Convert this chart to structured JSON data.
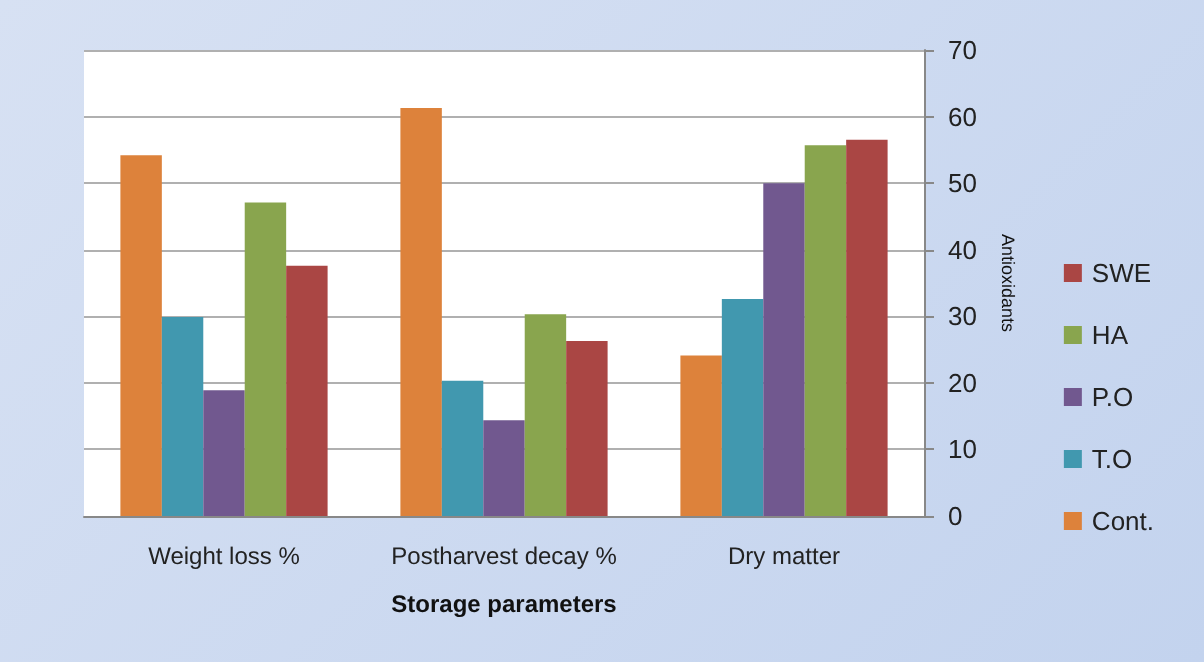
{
  "chart_data": {
    "type": "bar",
    "xlabel": "Storage parameters",
    "ylabel": "Antioxidants",
    "categories": [
      "Weight loss %",
      "Postharvest decay %",
      "Dry matter"
    ],
    "series": [
      {
        "name": "Cont.",
        "color": "#dd823b",
        "values": [
          54.2,
          61.3,
          24.1
        ]
      },
      {
        "name": "T.O",
        "color": "#4198af",
        "values": [
          29.9,
          20.3,
          32.6
        ]
      },
      {
        "name": "P.O",
        "color": "#71588f",
        "values": [
          18.9,
          14.4,
          50
        ]
      },
      {
        "name": "HA",
        "color": "#89a54e",
        "values": [
          47.1,
          30.3,
          55.7
        ]
      },
      {
        "name": "SWE",
        "color": "#aa4644",
        "values": [
          37.6,
          26.3,
          56.5
        ]
      }
    ],
    "ylim": [
      0,
      70
    ],
    "yticks": [
      0,
      10,
      20,
      30,
      40,
      50,
      60,
      70
    ],
    "grid": "y",
    "legend": "right"
  }
}
